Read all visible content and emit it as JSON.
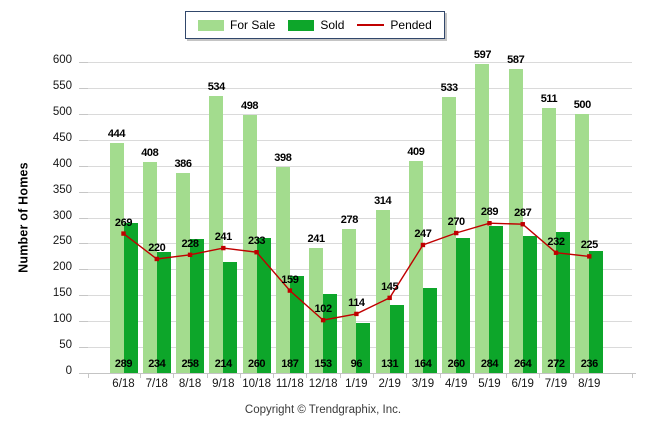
{
  "legend": {
    "items": [
      {
        "label": "For Sale",
        "color": "#A3DC8E",
        "swatch": "box"
      },
      {
        "label": "Sold",
        "color": "#0DA62A",
        "swatch": "box"
      },
      {
        "label": "Pended",
        "color": "#C00000",
        "swatch": "line"
      }
    ]
  },
  "y_axis": {
    "title": "Number of Homes"
  },
  "footer": {
    "copyright": "Copyright © Trendgraphix, Inc."
  },
  "chart_data": {
    "type": "bar",
    "title": "",
    "xlabel": "",
    "ylabel": "Number of Homes",
    "ylim": [
      0,
      600
    ],
    "ytick_step": 50,
    "grid": true,
    "legend_position": "top",
    "categories": [
      "6/18",
      "7/18",
      "8/18",
      "9/18",
      "10/18",
      "11/18",
      "12/18",
      "1/19",
      "2/19",
      "3/19",
      "4/19",
      "5/19",
      "6/19",
      "7/19",
      "8/19"
    ],
    "series": [
      {
        "name": "For Sale",
        "type": "bar",
        "color": "#A3DC8E",
        "values": [
          444,
          408,
          386,
          534,
          498,
          398,
          241,
          278,
          314,
          409,
          533,
          597,
          587,
          511,
          500
        ]
      },
      {
        "name": "Sold",
        "type": "bar",
        "color": "#0DA62A",
        "values": [
          289,
          234,
          258,
          214,
          260,
          187,
          153,
          96,
          131,
          164,
          260,
          284,
          264,
          272,
          236
        ]
      },
      {
        "name": "Pended",
        "type": "line",
        "color": "#C00000",
        "values": [
          269,
          220,
          228,
          241,
          233,
          159,
          102,
          114,
          145,
          247,
          270,
          289,
          287,
          232,
          225
        ]
      }
    ]
  }
}
